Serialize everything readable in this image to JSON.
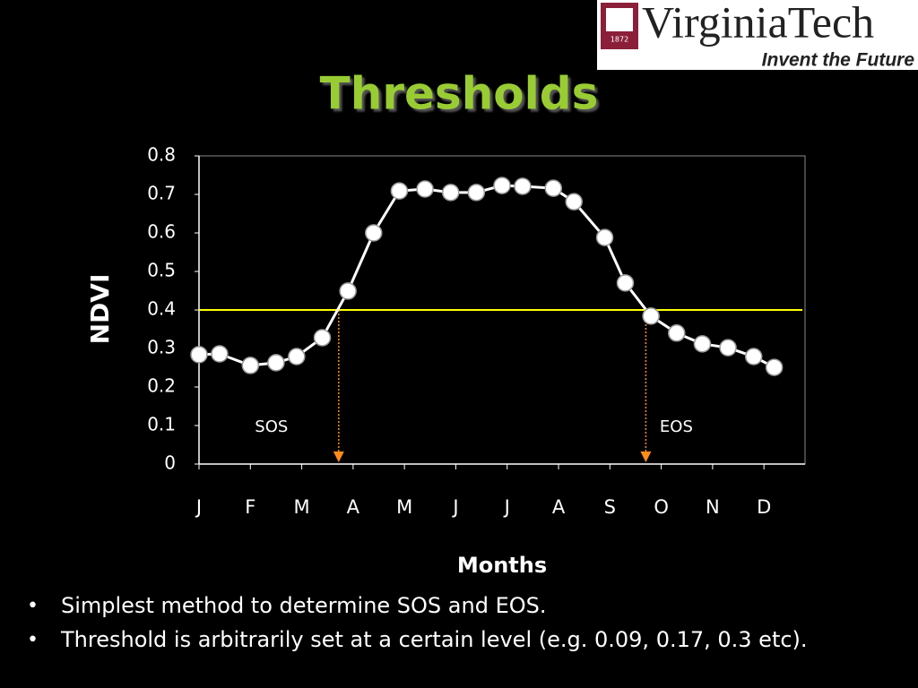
{
  "logo": {
    "name": "VirginiaTech",
    "tagline": "Invent the Future",
    "year": "1872"
  },
  "chart_data": {
    "type": "line",
    "title": "Thresholds",
    "xlabel": "Months",
    "ylabel": "NDVI",
    "x": [
      0,
      0.4,
      1.0,
      1.5,
      1.9,
      2.4,
      2.9,
      3.4,
      3.9,
      4.4,
      4.9,
      5.4,
      5.9,
      6.3,
      6.9,
      7.3,
      7.9,
      8.3,
      8.8,
      9.3,
      9.8,
      10.3,
      10.8,
      11.2
    ],
    "series": [
      {
        "name": "NDVI",
        "color": "#ffffff",
        "values": [
          0.284,
          0.286,
          0.256,
          0.263,
          0.279,
          0.328,
          0.449,
          0.6,
          0.709,
          0.714,
          0.705,
          0.705,
          0.723,
          0.721,
          0.716,
          0.681,
          0.588,
          0.47,
          0.384,
          0.34,
          0.312,
          0.302,
          0.279,
          0.251
        ]
      }
    ],
    "xlim": [
      0,
      11.8
    ],
    "xticks": [
      {
        "value": 0,
        "label": "J"
      },
      {
        "value": 1,
        "label": "F"
      },
      {
        "value": 2,
        "label": "M"
      },
      {
        "value": 3,
        "label": "A"
      },
      {
        "value": 4,
        "label": "M"
      },
      {
        "value": 5,
        "label": "J"
      },
      {
        "value": 6,
        "label": "J"
      },
      {
        "value": 7,
        "label": "A"
      },
      {
        "value": 8,
        "label": "S"
      },
      {
        "value": 9,
        "label": "O"
      },
      {
        "value": 10,
        "label": "N"
      },
      {
        "value": 11,
        "label": "D"
      }
    ],
    "ylim": [
      0,
      0.8
    ],
    "yticks": [
      0,
      0.1,
      0.2,
      0.3,
      0.4,
      0.5,
      0.6,
      0.7,
      0.8
    ],
    "threshold": {
      "value": 0.4,
      "color": "#ffff00"
    },
    "annotations": [
      {
        "text": "SOS",
        "x": 2.72,
        "color": "#ff8c1a"
      },
      {
        "text": "EOS",
        "x": 8.7,
        "color": "#ff8c1a"
      }
    ]
  },
  "bullets": [
    "Simplest method to determine SOS and EOS.",
    "Threshold is arbitrarily set at a certain level (e.g. 0.09, 0.17, 0.3 etc)."
  ]
}
